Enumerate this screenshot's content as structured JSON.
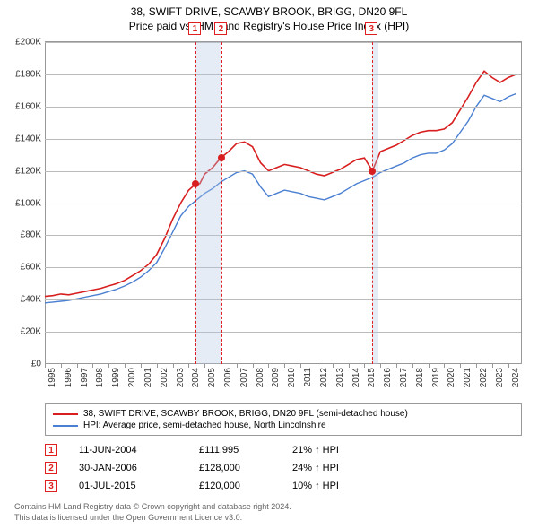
{
  "title": {
    "line1": "38, SWIFT DRIVE, SCAWBY BROOK, BRIGG, DN20 9FL",
    "line2": "Price paid vs. HM Land Registry's House Price Index (HPI)"
  },
  "chart": {
    "type": "line",
    "background_color": "#ffffff",
    "grid_color": "#bbbbbb",
    "axis_color": "#999999",
    "ylim": [
      0,
      200000
    ],
    "ytick_step": 20000,
    "ytick_labels": [
      "£0",
      "£20K",
      "£40K",
      "£60K",
      "£80K",
      "£100K",
      "£120K",
      "£140K",
      "£160K",
      "£180K",
      "£200K"
    ],
    "xlim": [
      1995,
      2024.8
    ],
    "xtick_years": [
      1995,
      1996,
      1997,
      1998,
      1999,
      2000,
      2001,
      2002,
      2003,
      2004,
      2005,
      2006,
      2007,
      2008,
      2009,
      2010,
      2011,
      2012,
      2013,
      2014,
      2015,
      2016,
      2017,
      2018,
      2019,
      2020,
      2021,
      2022,
      2023,
      2024
    ],
    "series": [
      {
        "name": "property",
        "label": "38, SWIFT DRIVE, SCAWBY BROOK, BRIGG, DN20 9FL (semi-detached house)",
        "color": "#d81e1e",
        "line_width": 1.6,
        "data": [
          [
            1995,
            42000
          ],
          [
            1995.5,
            42500
          ],
          [
            1996,
            43500
          ],
          [
            1996.5,
            43000
          ],
          [
            1997,
            44000
          ],
          [
            1997.5,
            45000
          ],
          [
            1998,
            46000
          ],
          [
            1998.5,
            47000
          ],
          [
            1999,
            48500
          ],
          [
            1999.5,
            50000
          ],
          [
            2000,
            52000
          ],
          [
            2000.5,
            55000
          ],
          [
            2001,
            58000
          ],
          [
            2001.5,
            62000
          ],
          [
            2002,
            68000
          ],
          [
            2002.5,
            78000
          ],
          [
            2003,
            90000
          ],
          [
            2003.5,
            100000
          ],
          [
            2004,
            108000
          ],
          [
            2004.45,
            111995
          ],
          [
            2004.7,
            112000
          ],
          [
            2005,
            118000
          ],
          [
            2005.5,
            122000
          ],
          [
            2006,
            128000
          ],
          [
            2006.5,
            132000
          ],
          [
            2007,
            137000
          ],
          [
            2007.5,
            138000
          ],
          [
            2008,
            135000
          ],
          [
            2008.5,
            125000
          ],
          [
            2009,
            120000
          ],
          [
            2009.5,
            122000
          ],
          [
            2010,
            124000
          ],
          [
            2010.5,
            123000
          ],
          [
            2011,
            122000
          ],
          [
            2011.5,
            120000
          ],
          [
            2012,
            118000
          ],
          [
            2012.5,
            117000
          ],
          [
            2013,
            119000
          ],
          [
            2013.5,
            121000
          ],
          [
            2014,
            124000
          ],
          [
            2014.5,
            127000
          ],
          [
            2015,
            128000
          ],
          [
            2015.5,
            120000
          ],
          [
            2016,
            132000
          ],
          [
            2016.5,
            134000
          ],
          [
            2017,
            136000
          ],
          [
            2017.5,
            139000
          ],
          [
            2018,
            142000
          ],
          [
            2018.5,
            144000
          ],
          [
            2019,
            145000
          ],
          [
            2019.5,
            145000
          ],
          [
            2020,
            146000
          ],
          [
            2020.5,
            150000
          ],
          [
            2021,
            158000
          ],
          [
            2021.5,
            166000
          ],
          [
            2022,
            175000
          ],
          [
            2022.5,
            182000
          ],
          [
            2023,
            178000
          ],
          [
            2023.5,
            175000
          ],
          [
            2024,
            178000
          ],
          [
            2024.5,
            180000
          ]
        ]
      },
      {
        "name": "hpi",
        "label": "HPI: Average price, semi-detached house, North Lincolnshire",
        "color": "#4a7fd1",
        "line_width": 1.4,
        "data": [
          [
            1995,
            38000
          ],
          [
            1995.5,
            38500
          ],
          [
            1996,
            39000
          ],
          [
            1996.5,
            39500
          ],
          [
            1997,
            40500
          ],
          [
            1997.5,
            41500
          ],
          [
            1998,
            42500
          ],
          [
            1998.5,
            43500
          ],
          [
            1999,
            45000
          ],
          [
            1999.5,
            46500
          ],
          [
            2000,
            48500
          ],
          [
            2000.5,
            51000
          ],
          [
            2001,
            54000
          ],
          [
            2001.5,
            58000
          ],
          [
            2002,
            63000
          ],
          [
            2002.5,
            72000
          ],
          [
            2003,
            82000
          ],
          [
            2003.5,
            92000
          ],
          [
            2004,
            98000
          ],
          [
            2004.5,
            102000
          ],
          [
            2005,
            106000
          ],
          [
            2005.5,
            109000
          ],
          [
            2006,
            113000
          ],
          [
            2006.5,
            116000
          ],
          [
            2007,
            119000
          ],
          [
            2007.5,
            120000
          ],
          [
            2008,
            118000
          ],
          [
            2008.5,
            110000
          ],
          [
            2009,
            104000
          ],
          [
            2009.5,
            106000
          ],
          [
            2010,
            108000
          ],
          [
            2010.5,
            107000
          ],
          [
            2011,
            106000
          ],
          [
            2011.5,
            104000
          ],
          [
            2012,
            103000
          ],
          [
            2012.5,
            102000
          ],
          [
            2013,
            104000
          ],
          [
            2013.5,
            106000
          ],
          [
            2014,
            109000
          ],
          [
            2014.5,
            112000
          ],
          [
            2015,
            114000
          ],
          [
            2015.5,
            116000
          ],
          [
            2016,
            119000
          ],
          [
            2016.5,
            121000
          ],
          [
            2017,
            123000
          ],
          [
            2017.5,
            125000
          ],
          [
            2018,
            128000
          ],
          [
            2018.5,
            130000
          ],
          [
            2019,
            131000
          ],
          [
            2019.5,
            131000
          ],
          [
            2020,
            133000
          ],
          [
            2020.5,
            137000
          ],
          [
            2021,
            144000
          ],
          [
            2021.5,
            151000
          ],
          [
            2022,
            160000
          ],
          [
            2022.5,
            167000
          ],
          [
            2023,
            165000
          ],
          [
            2023.5,
            163000
          ],
          [
            2024,
            166000
          ],
          [
            2024.5,
            168000
          ]
        ]
      }
    ],
    "shaded_ranges": [
      {
        "from": 2004.45,
        "to": 2006.08,
        "color": "rgba(180,200,230,0.35)"
      },
      {
        "from": 2015.5,
        "to": 2015.9,
        "color": "rgba(180,200,230,0.35)"
      }
    ],
    "markers": [
      {
        "id": "1",
        "x": 2004.45,
        "point_y": 111995,
        "point_color": "#d81e1e",
        "dash_color": "#e02020"
      },
      {
        "id": "2",
        "x": 2006.08,
        "point_y": 128000,
        "point_color": "#d81e1e",
        "dash_color": "#e02020"
      },
      {
        "id": "3",
        "x": 2015.5,
        "point_y": 120000,
        "point_color": "#d81e1e",
        "dash_color": "#e02020"
      }
    ]
  },
  "legend": {
    "rows": [
      {
        "color": "#d81e1e",
        "label": "38, SWIFT DRIVE, SCAWBY BROOK, BRIGG, DN20 9FL (semi-detached house)"
      },
      {
        "color": "#4a7fd1",
        "label": "HPI: Average price, semi-detached house, North Lincolnshire"
      }
    ]
  },
  "events": [
    {
      "num": "1",
      "date": "11-JUN-2004",
      "price": "£111,995",
      "delta": "21% ↑ HPI"
    },
    {
      "num": "2",
      "date": "30-JAN-2006",
      "price": "£128,000",
      "delta": "24% ↑ HPI"
    },
    {
      "num": "3",
      "date": "01-JUL-2015",
      "price": "£120,000",
      "delta": "10% ↑ HPI"
    }
  ],
  "footer": {
    "line1": "Contains HM Land Registry data © Crown copyright and database right 2024.",
    "line2": "This data is licensed under the Open Government Licence v3.0."
  }
}
